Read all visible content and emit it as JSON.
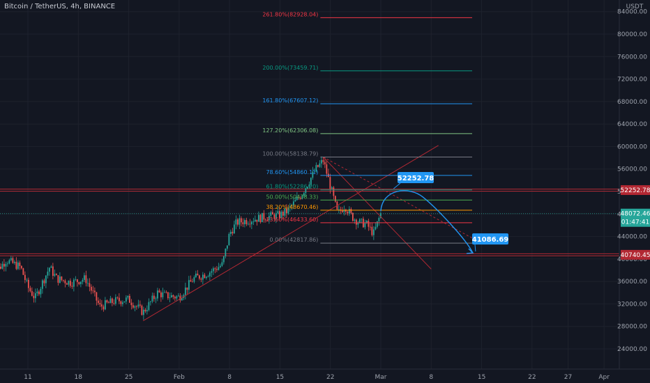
{
  "header": {
    "title": "Bitcoin / TetherUS, 4h, BINANCE"
  },
  "colors": {
    "background": "#131722",
    "grid": "#1e222d",
    "up": "#26a69a",
    "down": "#ef5350",
    "resistance": "#b22833",
    "projection": "#2196f3",
    "trend_up": "#b22833"
  },
  "chart_data": {
    "type": "candlestick",
    "title": "Bitcoin / TetherUS, 4h, BINANCE",
    "currency": "USDT",
    "y_ticks": [
      "84000.00",
      "80000.00",
      "76000.00",
      "72000.00",
      "68000.00",
      "64000.00",
      "60000.00",
      "56000.00",
      "52000.00",
      "48000.00",
      "44000.00",
      "40000.00",
      "36000.00",
      "32000.00",
      "28000.00",
      "24000.00"
    ],
    "y_range": [
      20500,
      86000
    ],
    "x_ticks": [
      {
        "label": "11",
        "date": "2021-01-11"
      },
      {
        "label": "18",
        "date": "2021-01-18"
      },
      {
        "label": "25",
        "date": "2021-01-25"
      },
      {
        "label": "Feb",
        "date": "2021-02-01"
      },
      {
        "label": "8",
        "date": "2021-02-08"
      },
      {
        "label": "15",
        "date": "2021-02-15"
      },
      {
        "label": "22",
        "date": "2021-02-22"
      },
      {
        "label": "Mar",
        "date": "2021-03-01"
      },
      {
        "label": "8",
        "date": "2021-03-08"
      },
      {
        "label": "15",
        "date": "2021-03-15"
      },
      {
        "label": "22",
        "date": "2021-03-22"
      },
      {
        "label": "27",
        "date": "2021-03-27"
      },
      {
        "label": "Apr",
        "date": "2021-04-01"
      }
    ],
    "price_path": [
      [
        "2021-01-06",
        37000
      ],
      [
        "2021-01-08",
        39800
      ],
      [
        "2021-01-10",
        38500
      ],
      [
        "2021-01-11",
        35000
      ],
      [
        "2021-01-12",
        33000
      ],
      [
        "2021-01-14",
        38500
      ],
      [
        "2021-01-15",
        36500
      ],
      [
        "2021-01-17",
        35800
      ],
      [
        "2021-01-19",
        36500
      ],
      [
        "2021-01-21",
        31500
      ],
      [
        "2021-01-23",
        32500
      ],
      [
        "2021-01-25",
        32800
      ],
      [
        "2021-01-27",
        30500
      ],
      [
        "2021-01-29",
        34000
      ],
      [
        "2021-01-30",
        33500
      ],
      [
        "2021-02-01",
        33200
      ],
      [
        "2021-02-03",
        36500
      ],
      [
        "2021-02-05",
        37500
      ],
      [
        "2021-02-07",
        39000
      ],
      [
        "2021-02-08",
        44500
      ],
      [
        "2021-02-09",
        46500
      ],
      [
        "2021-02-11",
        47000
      ],
      [
        "2021-02-13",
        47500
      ],
      [
        "2021-02-15",
        47800
      ],
      [
        "2021-02-16",
        48500
      ],
      [
        "2021-02-18",
        51500
      ],
      [
        "2021-02-20",
        56000
      ],
      [
        "2021-02-21",
        57500
      ],
      [
        "2021-02-22",
        53000
      ],
      [
        "2021-02-23",
        48000
      ],
      [
        "2021-02-24",
        49500
      ],
      [
        "2021-02-25",
        47500
      ],
      [
        "2021-02-26",
        46500
      ],
      [
        "2021-02-27",
        46200
      ],
      [
        "2021-02-28",
        44500
      ],
      [
        "2021-03-01",
        48072.46
      ]
    ],
    "fib_levels": [
      {
        "label": "261.80%(82928.04)",
        "value": 82928.04,
        "color": "#f23645"
      },
      {
        "label": "200.00%(73459.71)",
        "value": 73459.71,
        "color": "#089981"
      },
      {
        "label": "161.80%(67607.12)",
        "value": 67607.12,
        "color": "#2196f3"
      },
      {
        "label": "127.20%(62306.08)",
        "value": 62306.08,
        "color": "#81c784"
      },
      {
        "label": "100.00%(58138.79)",
        "value": 58138.79,
        "color": "#787b86"
      },
      {
        "label": "78.60%(54860.11)",
        "value": 54860.11,
        "color": "#2196f3"
      },
      {
        "label": "61.80%(52286.20)",
        "value": 52286.2,
        "color": "#089981"
      },
      {
        "label": "50.00%(50478.33)",
        "value": 50478.33,
        "color": "#4caf50"
      },
      {
        "label": "38.20%(48670.46)",
        "value": 48670.46,
        "color": "#ff9800"
      },
      {
        "label": "23.60%(46433.60)",
        "value": 46433.6,
        "color": "#f23645"
      },
      {
        "label": "0.00%(42817.86)",
        "value": 42817.86,
        "color": "#787b86"
      }
    ],
    "horizontal_levels": [
      {
        "label": "52252.78",
        "value": 52252.78
      },
      {
        "label": "40740.45",
        "value": 40740.45
      }
    ],
    "current_price": {
      "label": "48072.46",
      "value": 48072.46,
      "countdown": "01:47:41"
    },
    "projection_targets": [
      {
        "label": "52252.78",
        "value": 52252.78,
        "date": "2021-03-02"
      },
      {
        "label": "41086.69",
        "value": 41086.69,
        "date": "2021-03-13"
      }
    ]
  }
}
